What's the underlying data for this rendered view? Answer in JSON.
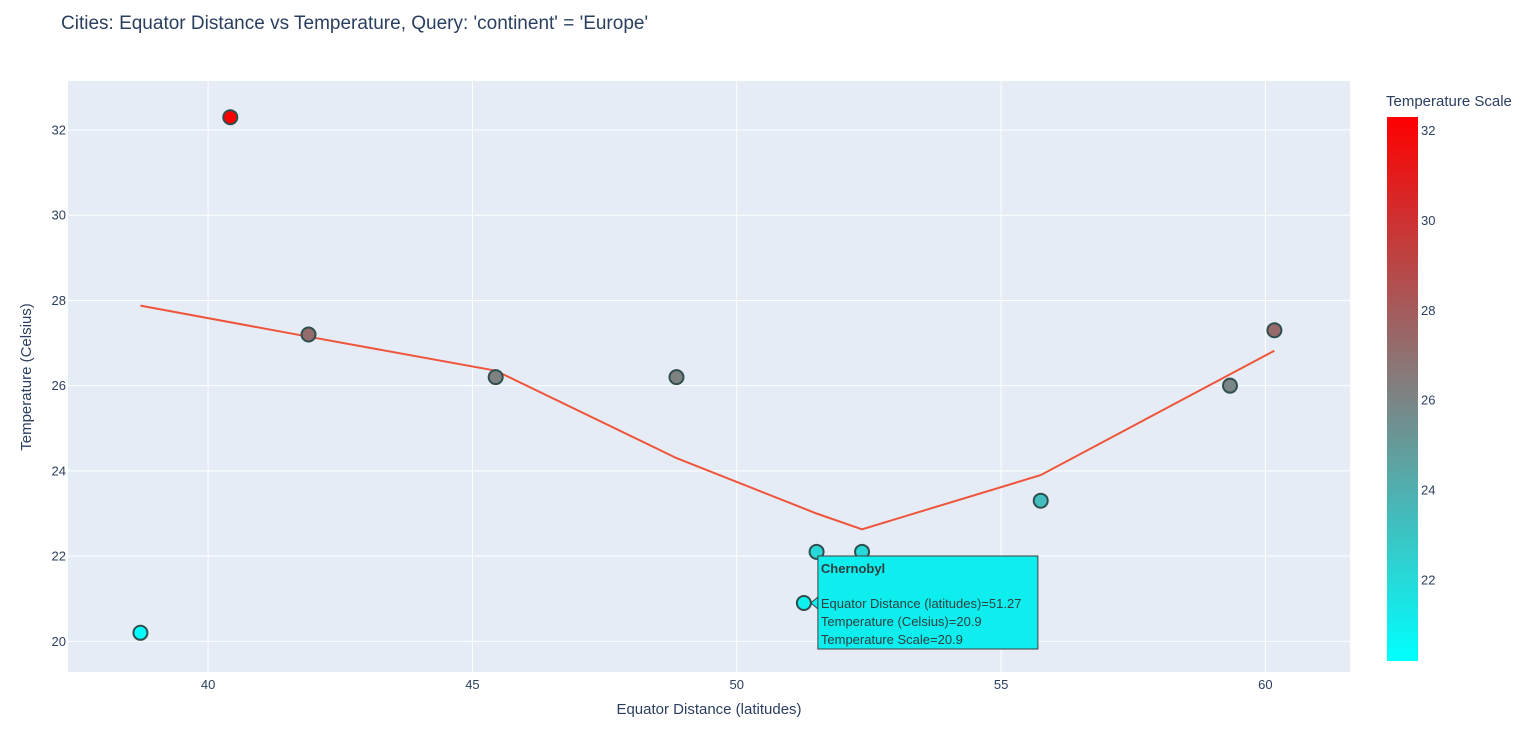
{
  "chart_data": {
    "type": "scatter",
    "title": "Cities: Equator Distance vs Temperature, Query: 'continent' = 'Europe'",
    "xlabel": "Equator Distance (latitudes)",
    "ylabel": "Temperature (Celsius)",
    "xlim": [
      37.35,
      61.6
    ],
    "ylim": [
      19.28,
      33.15
    ],
    "xticks": [
      40,
      45,
      50,
      55,
      60
    ],
    "yticks": [
      20,
      22,
      24,
      26,
      28,
      30,
      32
    ],
    "grid": true,
    "plot_background": "#E5ECF6",
    "marker_outline_color": "#2F4F4F",
    "colorscale": {
      "title": "Temperature Scale",
      "min": 20.2,
      "max": 32.3,
      "min_color": "#00FFFF",
      "max_color": "#FF0000",
      "ticks": [
        22,
        24,
        26,
        28,
        30,
        32
      ]
    },
    "points": [
      {
        "x": 38.72,
        "y": 20.2
      },
      {
        "x": 40.42,
        "y": 32.3
      },
      {
        "x": 41.9,
        "y": 27.2
      },
      {
        "x": 45.44,
        "y": 26.2
      },
      {
        "x": 48.86,
        "y": 26.2
      },
      {
        "x": 51.27,
        "y": 20.9
      },
      {
        "x": 51.51,
        "y": 22.1
      },
      {
        "x": 52.37,
        "y": 22.1
      },
      {
        "x": 55.75,
        "y": 23.3
      },
      {
        "x": 59.33,
        "y": 26.0
      },
      {
        "x": 60.17,
        "y": 27.3
      }
    ],
    "trendline": {
      "color": "#EF553B",
      "points": [
        {
          "x": 38.72,
          "y": 27.88
        },
        {
          "x": 41.9,
          "y": 27.15
        },
        {
          "x": 45.44,
          "y": 26.35
        },
        {
          "x": 48.86,
          "y": 24.3
        },
        {
          "x": 51.51,
          "y": 23.0
        },
        {
          "x": 52.37,
          "y": 22.63
        },
        {
          "x": 55.75,
          "y": 23.9
        },
        {
          "x": 60.17,
          "y": 26.82
        }
      ]
    },
    "hover": {
      "point_index": 5,
      "title": "Chernobyl",
      "lines": [
        "Equator Distance (latitudes)=51.27",
        "Temperature (Celsius)=20.9",
        "Temperature Scale=20.9"
      ],
      "background": "#0FEEEE"
    }
  }
}
